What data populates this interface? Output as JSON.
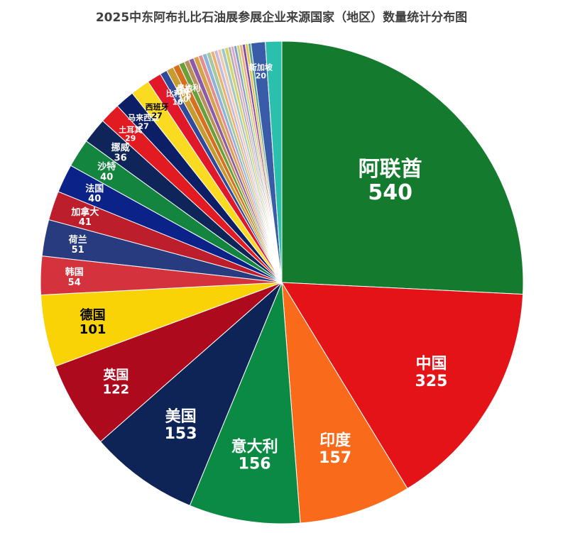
{
  "chart_data": {
    "type": "pie",
    "title": "2025中东阿布扎比石油展参展企业来源国家（地区）数量统计分布图",
    "start_angle_deg": 90,
    "direction": "clockwise",
    "slices": [
      {
        "label": "阿联酋",
        "value": 540,
        "color": "#137A2E"
      },
      {
        "label": "中国",
        "value": 325,
        "color": "#E31318"
      },
      {
        "label": "印度",
        "value": 157,
        "color": "#F96A1B"
      },
      {
        "label": "意大利",
        "value": 156,
        "color": "#0A8A43"
      },
      {
        "label": "美国",
        "value": 153,
        "color": "#0E2356"
      },
      {
        "label": "英国",
        "value": 122,
        "color": "#AE0A1E"
      },
      {
        "label": "德国",
        "value": 101,
        "color": "#F9D306"
      },
      {
        "label": "韩国",
        "value": 54,
        "color": "#D4333E"
      },
      {
        "label": "荷兰",
        "value": 51,
        "color": "#283B7E"
      },
      {
        "label": "加拿大",
        "value": 41,
        "color": "#BD1E2B"
      },
      {
        "label": "法国",
        "value": 40,
        "color": "#0B2389"
      },
      {
        "label": "沙特",
        "value": 40,
        "color": "#13853F"
      },
      {
        "label": "挪威",
        "value": 36,
        "color": "#0F2458"
      },
      {
        "label": "土耳其",
        "value": 29,
        "color": "#E21A22"
      },
      {
        "label": "马来西亚",
        "value": 27,
        "color": "#0C1F66"
      },
      {
        "label": "西班牙",
        "value": 27,
        "color": "#FBDB22"
      },
      {
        "label": "",
        "value": 20,
        "color": "#E0182A"
      },
      {
        "label": "比利时",
        "value": 10,
        "color": "#2F4A9A"
      },
      {
        "label": "日本",
        "value": 10,
        "color": "#C99A2E"
      },
      {
        "label": "奥地利",
        "value": 9,
        "color": "#D86F1E"
      },
      {
        "label": "",
        "value": 8,
        "color": "#6A9F3A"
      },
      {
        "label": "",
        "value": 7,
        "color": "#B98F5A"
      },
      {
        "label": "",
        "value": 7,
        "color": "#8C5AA6"
      },
      {
        "label": "",
        "value": 7,
        "color": "#D8A14A"
      },
      {
        "label": "",
        "value": 6,
        "color": "#E58C8C"
      },
      {
        "label": "",
        "value": 6,
        "color": "#8DB3D9"
      },
      {
        "label": "",
        "value": 6,
        "color": "#A8C8A0"
      },
      {
        "label": "",
        "value": 5,
        "color": "#F0B06A"
      },
      {
        "label": "",
        "value": 5,
        "color": "#C7B9DA"
      },
      {
        "label": "",
        "value": 5,
        "color": "#F2C9B3"
      },
      {
        "label": "",
        "value": 5,
        "color": "#9EC9C4"
      },
      {
        "label": "",
        "value": 5,
        "color": "#D6D36A"
      },
      {
        "label": "",
        "value": 4,
        "color": "#B0B0B0"
      },
      {
        "label": "",
        "value": 4,
        "color": "#E0A4C4"
      },
      {
        "label": "",
        "value": 4,
        "color": "#7FA0C8"
      },
      {
        "label": "",
        "value": 4,
        "color": "#C8D67A"
      },
      {
        "label": "",
        "value": 4,
        "color": "#F4A58A"
      },
      {
        "label": "",
        "value": 4,
        "color": "#7A4E9C"
      },
      {
        "label": "",
        "value": 4,
        "color": "#E8C04A"
      },
      {
        "label": "",
        "value": 4,
        "color": "#5AA58F"
      },
      {
        "label": "新加坡",
        "value": 20,
        "color": "#3A5BA8"
      },
      {
        "label": "",
        "value": 23,
        "color": "#2BBFAE"
      }
    ]
  }
}
